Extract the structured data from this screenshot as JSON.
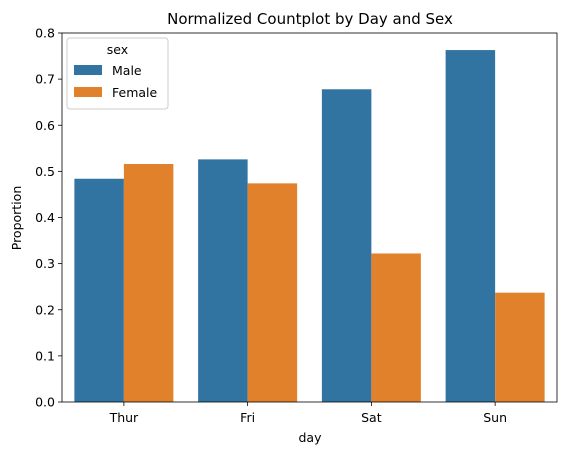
{
  "chart_data": {
    "type": "bar",
    "title": "Normalized Countplot by Day and Sex",
    "xlabel": "day",
    "ylabel": "Proportion",
    "categories": [
      "Thur",
      "Fri",
      "Sat",
      "Sun"
    ],
    "series": [
      {
        "name": "Male",
        "color": "#3274a1",
        "values": [
          0.484,
          0.526,
          0.678,
          0.763
        ]
      },
      {
        "name": "Female",
        "color": "#e1812c",
        "values": [
          0.516,
          0.474,
          0.322,
          0.237
        ]
      }
    ],
    "ylim": [
      0,
      0.8
    ],
    "yticks": [
      0.0,
      0.1,
      0.2,
      0.3,
      0.4,
      0.5,
      0.6,
      0.7,
      0.8
    ],
    "ytick_labels": [
      "0.0",
      "0.1",
      "0.2",
      "0.3",
      "0.4",
      "0.5",
      "0.6",
      "0.7",
      "0.8"
    ],
    "legend": {
      "title": "sex",
      "placement": "top-left"
    },
    "grid": false
  }
}
